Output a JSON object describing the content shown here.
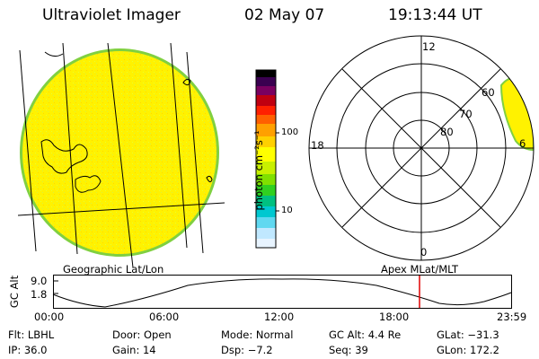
{
  "header": {
    "instrument": "Ultraviolet Imager",
    "date": "02 May 07",
    "time": "19:13:44 UT"
  },
  "colorbar": {
    "unit_label": "photon cm⁻²s⁻¹",
    "ticks": [
      "100",
      "10"
    ],
    "colors": [
      "#000000",
      "#3a0050",
      "#7a0060",
      "#c00010",
      "#ff2000",
      "#ff6000",
      "#ffa000",
      "#ffd000",
      "#ffff00",
      "#c8f000",
      "#80e000",
      "#30d020",
      "#00c080",
      "#00c8d0",
      "#60d8f0",
      "#c0e8ff",
      "#ffffff"
    ]
  },
  "polar": {
    "mlt_labels": {
      "top": "12",
      "left": "18",
      "right": "6",
      "bottom": "0"
    },
    "lat_labels": [
      "60",
      "70",
      "80"
    ]
  },
  "left_panel_label": "Geographic Lat/Lon",
  "right_panel_label": "Apex MLat/MLT",
  "altitude_plot": {
    "y_label": "GC Alt",
    "y_ticks": [
      "9.0",
      "1.8"
    ],
    "x_ticks": [
      "00:00",
      "06:00",
      "12:00",
      "18:00",
      "23:59"
    ],
    "current_time_marker_color": "#e00000"
  },
  "status": {
    "row1": [
      {
        "label": "Flt:",
        "value": "LBHL"
      },
      {
        "label": "Door:",
        "value": "Open"
      },
      {
        "label": "Mode:",
        "value": "Normal"
      },
      {
        "label": "GC Alt:",
        "value": "4.4 Re"
      },
      {
        "label": "GLat:",
        "value": "−31.3"
      }
    ],
    "row2": [
      {
        "label": "IP:",
        "value": "36.0"
      },
      {
        "label": "Gain:",
        "value": "14"
      },
      {
        "label": "Dsp:",
        "value": "−7.2"
      },
      {
        "label": "Seq:",
        "value": "39"
      },
      {
        "label": "GLon:",
        "value": "172.2"
      }
    ]
  }
}
